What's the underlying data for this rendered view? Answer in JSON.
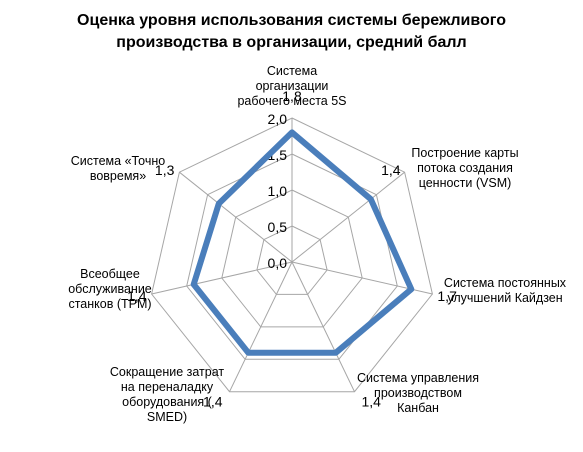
{
  "chart_data": {
    "type": "radar",
    "title_lines": [
      "Оценка уровня использования системы бережливого",
      "производства в организации, средний балл"
    ],
    "axes": [
      {
        "label_lines": [
          "Система",
          "организации",
          "рабочего места 5S"
        ],
        "value": 1.8,
        "value_label": "1,8"
      },
      {
        "label_lines": [
          "Построение карты",
          "потока создания",
          "ценности (VSM)"
        ],
        "value": 1.4,
        "value_label": "1,4"
      },
      {
        "label_lines": [
          "Система постоянных",
          "улучшений Кайдзен"
        ],
        "value": 1.7,
        "value_label": "1,7"
      },
      {
        "label_lines": [
          "Система управления",
          "производством",
          "Канбан"
        ],
        "value": 1.4,
        "value_label": "1,4"
      },
      {
        "label_lines": [
          "Сокращение затрат",
          "на переналадку",
          "оборудования  (",
          "SMED)"
        ],
        "value": 1.4,
        "value_label": "1,4"
      },
      {
        "label_lines": [
          "Всеобщее",
          "обслуживание",
          "станков (TPM)"
        ],
        "value": 1.4,
        "value_label": "1,4"
      },
      {
        "label_lines": [
          "Система «Точно",
          "вовремя»"
        ],
        "value": 1.3,
        "value_label": "1,3"
      }
    ],
    "scale": {
      "min": 0,
      "max": 2.0,
      "ticks": [
        0,
        0.5,
        1.0,
        1.5,
        2.0
      ],
      "tick_labels": [
        "0,0",
        "0,5",
        "1,0",
        "1,5",
        "2,0"
      ]
    },
    "series": [
      {
        "values": [
          1.8,
          1.4,
          1.7,
          1.4,
          1.4,
          1.4,
          1.3
        ],
        "color": "#4a7ebb"
      }
    ],
    "grid": true,
    "legend": "none",
    "colors": {
      "series": "#4a7ebb",
      "grid": "#a6a6a6",
      "text": "#000000"
    }
  }
}
